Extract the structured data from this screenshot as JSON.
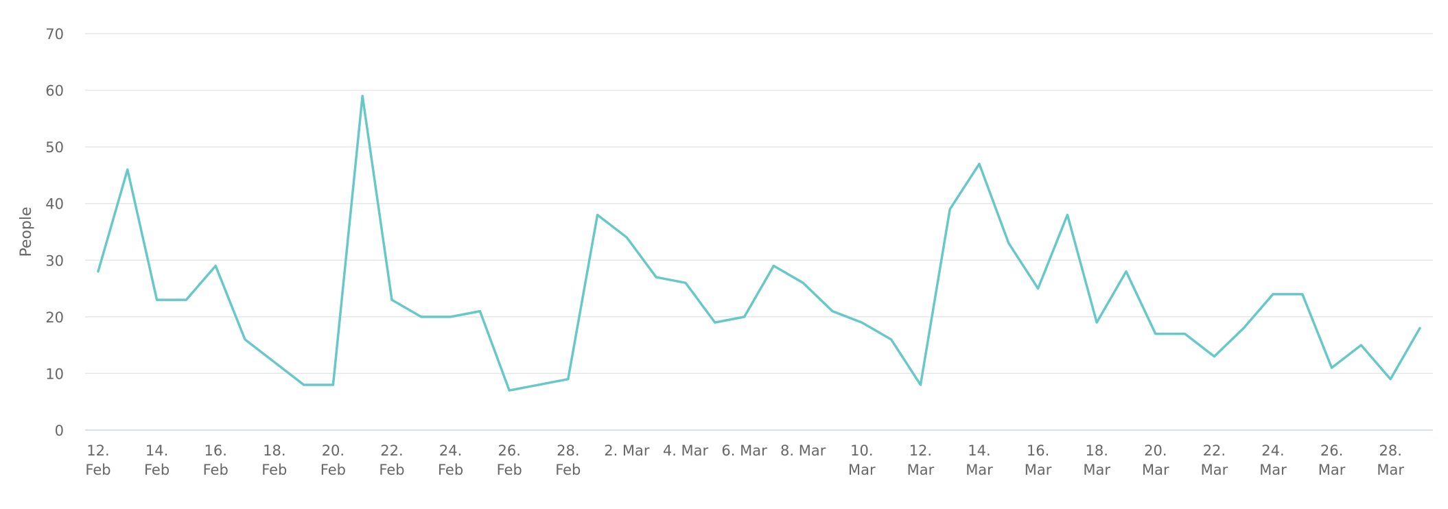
{
  "chart_data": {
    "type": "line",
    "title": "",
    "xlabel": "",
    "ylabel": "People",
    "ylim": [
      0,
      70
    ],
    "yticks": [
      0,
      10,
      20,
      30,
      40,
      50,
      60,
      70
    ],
    "grid": true,
    "color": "#66c8c8",
    "gridColor": "#e6e6e6",
    "baselineColor": "#ccd6eb",
    "x": [
      "12. Feb",
      "13. Feb",
      "14. Feb",
      "15. Feb",
      "16. Feb",
      "17. Feb",
      "18. Feb",
      "19. Feb",
      "20. Feb",
      "21. Feb",
      "22. Feb",
      "23. Feb",
      "24. Feb",
      "25. Feb",
      "26. Feb",
      "27. Feb",
      "28. Feb",
      "1. Mar",
      "2. Mar",
      "3. Mar",
      "4. Mar",
      "5. Mar",
      "6. Mar",
      "7. Mar",
      "8. Mar",
      "9. Mar",
      "10. Mar",
      "11. Mar",
      "12. Mar",
      "13. Mar",
      "14. Mar",
      "15. Mar",
      "16. Mar",
      "17. Mar",
      "18. Mar",
      "19. Mar",
      "20. Mar",
      "21. Mar",
      "22. Mar",
      "23. Mar",
      "24. Mar",
      "25. Mar",
      "26. Mar",
      "27. Mar",
      "28. Mar",
      "29. Mar"
    ],
    "xticks": [
      {
        "index": 0,
        "lines": [
          "12.",
          "Feb"
        ]
      },
      {
        "index": 2,
        "lines": [
          "14.",
          "Feb"
        ]
      },
      {
        "index": 4,
        "lines": [
          "16.",
          "Feb"
        ]
      },
      {
        "index": 6,
        "lines": [
          "18.",
          "Feb"
        ]
      },
      {
        "index": 8,
        "lines": [
          "20.",
          "Feb"
        ]
      },
      {
        "index": 10,
        "lines": [
          "22.",
          "Feb"
        ]
      },
      {
        "index": 12,
        "lines": [
          "24.",
          "Feb"
        ]
      },
      {
        "index": 14,
        "lines": [
          "26.",
          "Feb"
        ]
      },
      {
        "index": 16,
        "lines": [
          "28.",
          "Feb"
        ]
      },
      {
        "index": 18,
        "lines": [
          "2. Mar"
        ]
      },
      {
        "index": 20,
        "lines": [
          "4. Mar"
        ]
      },
      {
        "index": 22,
        "lines": [
          "6. Mar"
        ]
      },
      {
        "index": 24,
        "lines": [
          "8. Mar"
        ]
      },
      {
        "index": 26,
        "lines": [
          "10.",
          "Mar"
        ]
      },
      {
        "index": 28,
        "lines": [
          "12.",
          "Mar"
        ]
      },
      {
        "index": 30,
        "lines": [
          "14.",
          "Mar"
        ]
      },
      {
        "index": 32,
        "lines": [
          "16.",
          "Mar"
        ]
      },
      {
        "index": 34,
        "lines": [
          "18.",
          "Mar"
        ]
      },
      {
        "index": 36,
        "lines": [
          "20.",
          "Mar"
        ]
      },
      {
        "index": 38,
        "lines": [
          "22.",
          "Mar"
        ]
      },
      {
        "index": 40,
        "lines": [
          "24.",
          "Mar"
        ]
      },
      {
        "index": 42,
        "lines": [
          "26.",
          "Mar"
        ]
      },
      {
        "index": 44,
        "lines": [
          "28.",
          "Mar"
        ]
      }
    ],
    "series": [
      {
        "values": [
          28,
          46,
          23,
          23,
          29,
          16,
          12,
          8,
          8,
          59,
          23,
          20,
          20,
          21,
          7,
          8,
          9,
          38,
          34,
          27,
          26,
          19,
          20,
          29,
          26,
          21,
          19,
          16,
          8,
          39,
          47,
          33,
          25,
          38,
          19,
          28,
          17,
          17,
          13,
          18,
          24,
          24,
          11,
          15,
          9,
          18
        ]
      }
    ]
  }
}
